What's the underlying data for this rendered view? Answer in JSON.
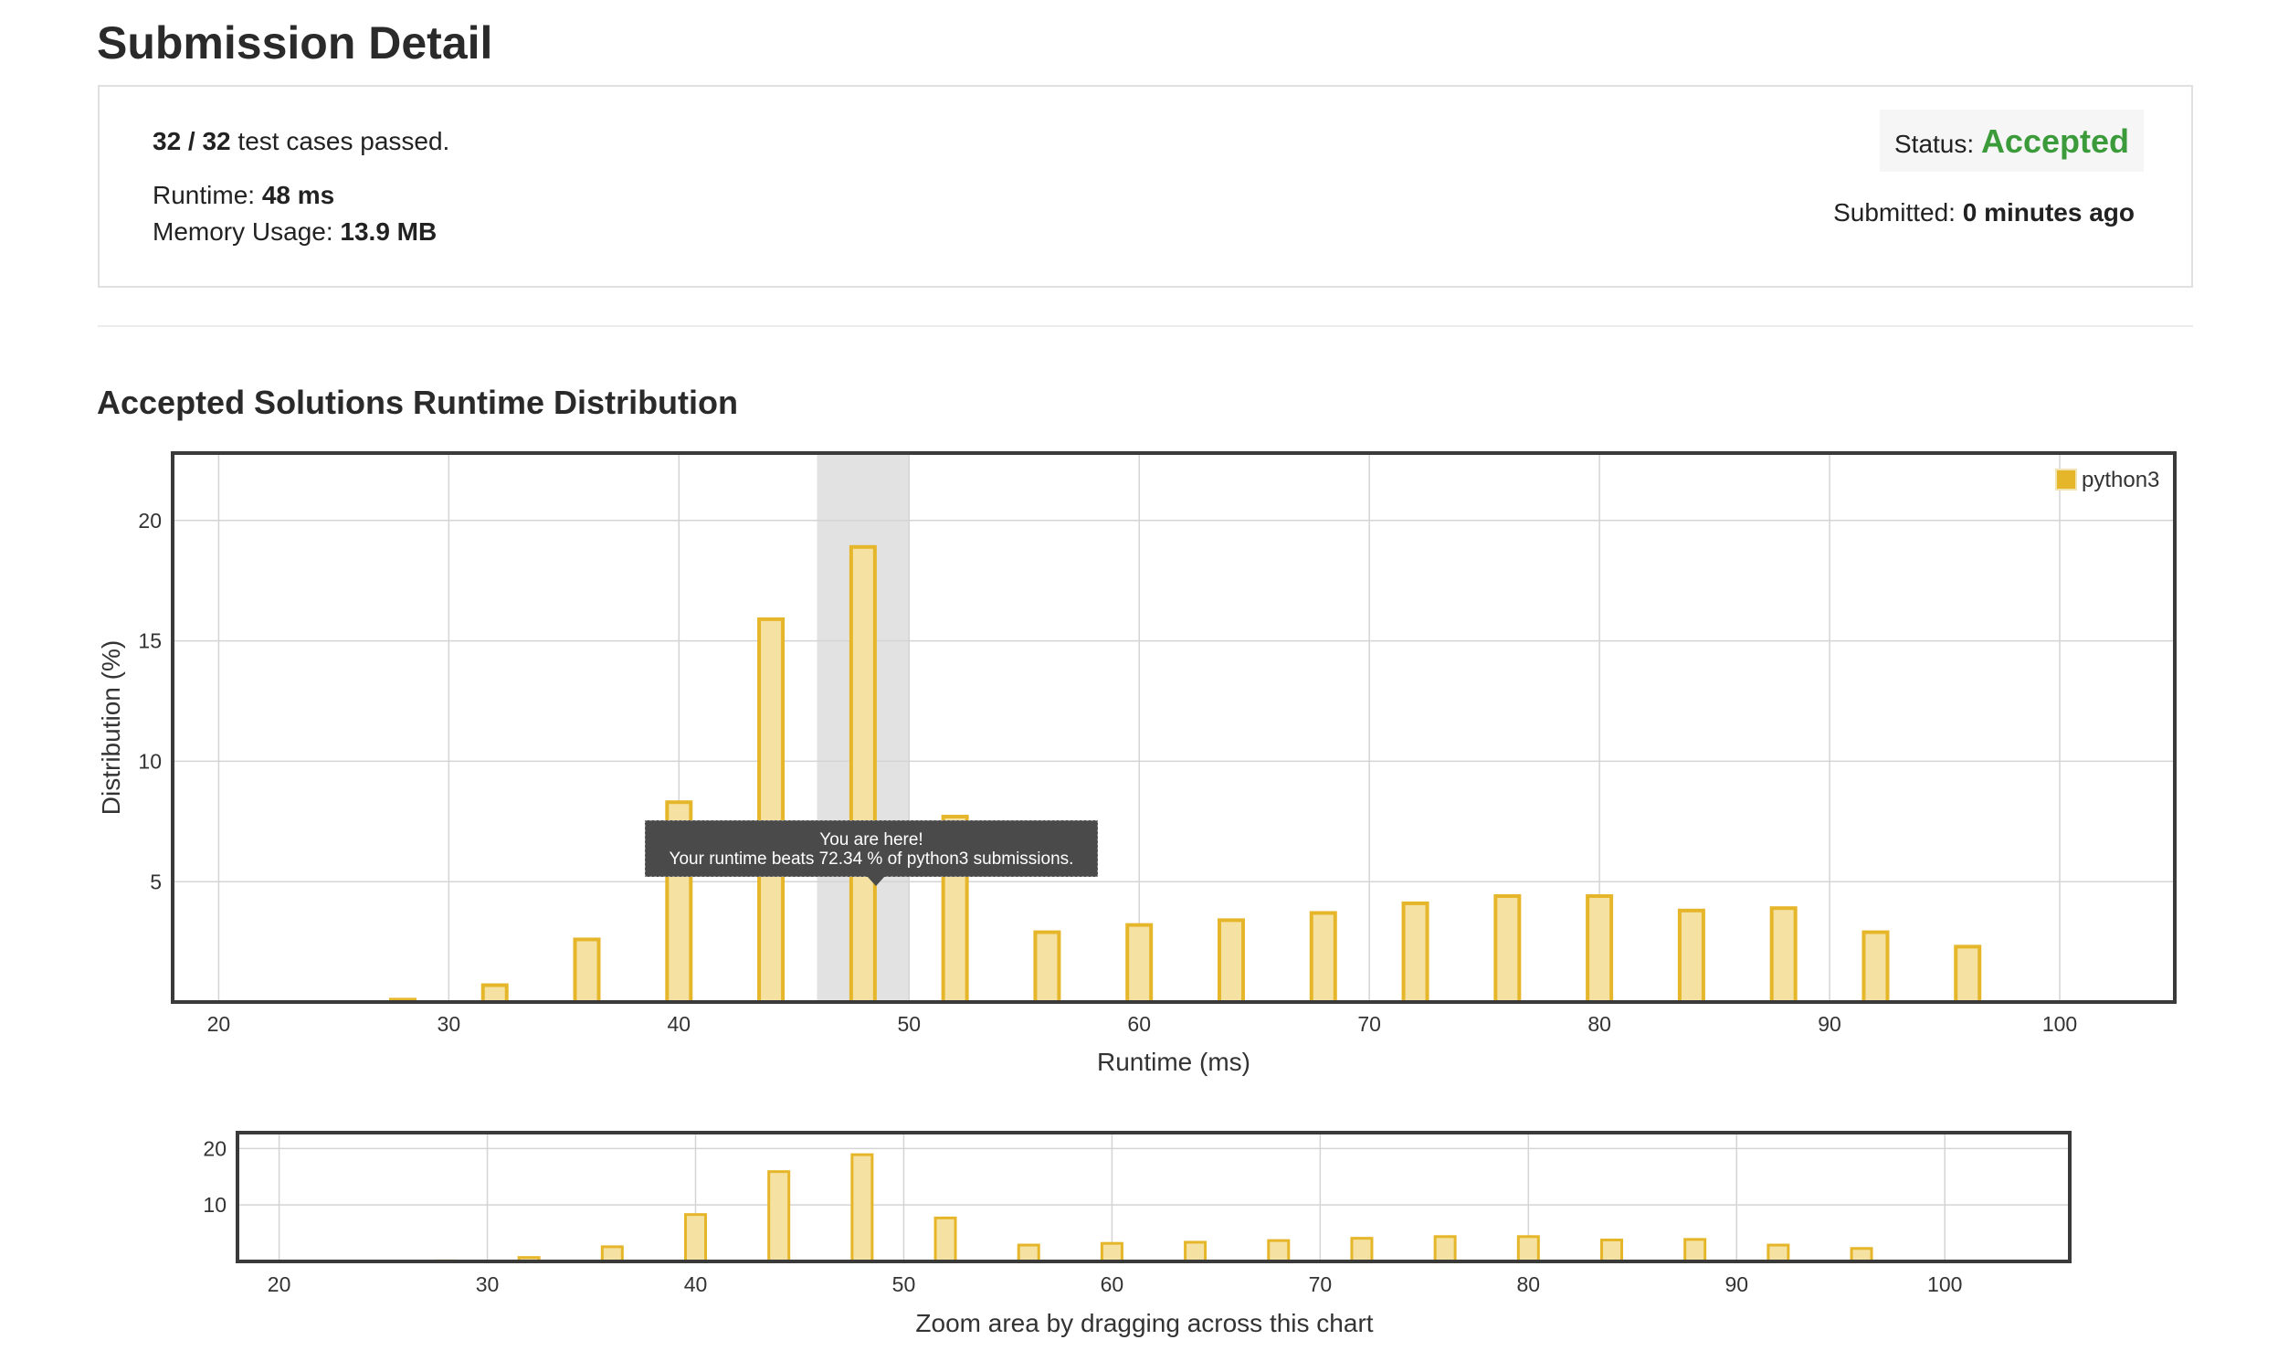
{
  "page_title": "Submission Detail",
  "summary": {
    "tests_passed": "32 / 32",
    "tests_label": " test cases passed.",
    "runtime_label": "Runtime: ",
    "runtime_value": "48 ms",
    "memory_label": "Memory Usage: ",
    "memory_value": "13.9 MB",
    "status_label": "Status: ",
    "status_value": "Accepted",
    "submitted_label": "Submitted: ",
    "submitted_value": "0 minutes ago"
  },
  "colors": {
    "bar_fill": "#f5e2a3",
    "bar_stroke": "#e6b62a",
    "status_green": "#3b9b3b",
    "highlight_band": "#e2e2e2"
  },
  "section_title": "Accepted Solutions Runtime Distribution",
  "tooltip": {
    "line1": "You are here!",
    "line2": "Your runtime beats 72.34 % of python3 submissions."
  },
  "navigator_caption": "Zoom area by dragging across this chart",
  "chart_data": [
    {
      "type": "bar",
      "x": [
        28,
        32,
        36,
        40,
        44,
        48,
        52,
        56,
        60,
        64,
        68,
        72,
        76,
        80,
        84,
        88,
        92,
        96
      ],
      "series": [
        {
          "name": "python3",
          "values": [
            0.1,
            0.7,
            2.6,
            8.3,
            15.9,
            18.9,
            7.7,
            2.9,
            3.2,
            3.4,
            3.7,
            4.1,
            4.4,
            4.4,
            3.8,
            3.9,
            2.9,
            2.3
          ]
        }
      ],
      "xlabel": "Runtime (ms)",
      "ylabel": "Distribution (%)",
      "xlim": [
        18,
        105
      ],
      "ylim": [
        0,
        22.8
      ],
      "xticks": [
        20,
        30,
        40,
        50,
        60,
        70,
        80,
        90,
        100
      ],
      "yticks": [
        5,
        10,
        15,
        20
      ],
      "highlight": [
        46,
        50
      ],
      "grid": true,
      "legend": "top-right"
    },
    {
      "type": "bar",
      "x": [
        28,
        32,
        36,
        40,
        44,
        48,
        52,
        56,
        60,
        64,
        68,
        72,
        76,
        80,
        84,
        88,
        92,
        96
      ],
      "series": [
        {
          "values": [
            0.1,
            0.7,
            2.6,
            8.3,
            15.9,
            18.9,
            7.7,
            2.9,
            3.2,
            3.4,
            3.7,
            4.1,
            4.4,
            4.4,
            3.8,
            3.9,
            2.9,
            2.3
          ]
        }
      ],
      "xlim": [
        18,
        106
      ],
      "ylim": [
        0,
        22.8
      ],
      "xticks": [
        20,
        30,
        40,
        50,
        60,
        70,
        80,
        90,
        100
      ],
      "yticks": [
        10,
        20
      ],
      "grid": true
    }
  ]
}
